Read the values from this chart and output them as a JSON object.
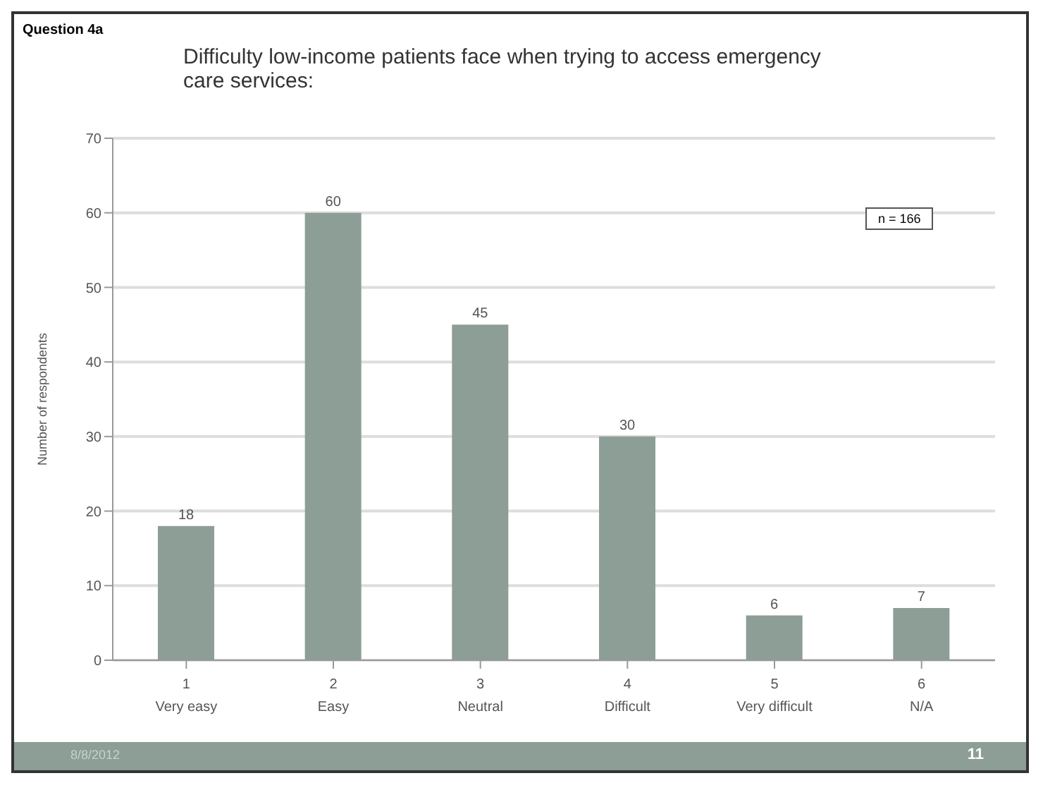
{
  "chart_data": {
    "type": "bar",
    "title": "Difficulty low-income patients face when trying to access emergency care services:",
    "ylabel": "Number of respondents",
    "categories": [
      "1\nVery easy",
      "2\nEasy",
      "3\nNeutral",
      "4\nDifficult",
      "5\nVery difficult",
      "6\nN/A"
    ],
    "values": [
      18,
      60,
      45,
      30,
      6,
      7
    ],
    "color": "#8c9e95",
    "data_labels": true,
    "ylim": [
      0,
      70
    ],
    "yticks": [
      0,
      10,
      20,
      30,
      40,
      50,
      60,
      70
    ],
    "grid": "y",
    "annotations": [
      "Question 4a",
      "n = 166",
      "8/8/2012",
      "11"
    ]
  }
}
